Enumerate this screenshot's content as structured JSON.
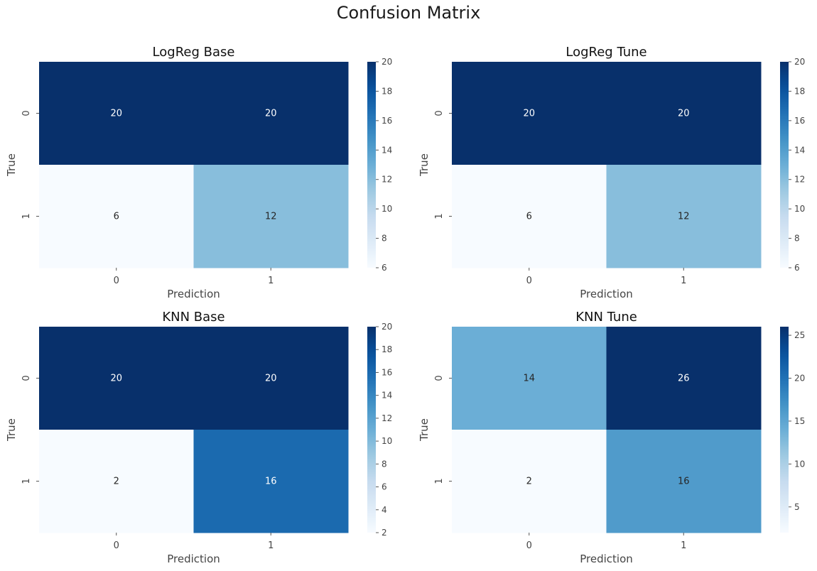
{
  "figure": {
    "title": "Confusion Matrix"
  },
  "colormap": {
    "name": "Blues",
    "low": "#f7fbff",
    "high": "#08306b"
  },
  "chart_data": [
    {
      "type": "heatmap",
      "title": "LogReg Base",
      "xlabel": "Prediction",
      "ylabel": "True",
      "x_categories": [
        "0",
        "1"
      ],
      "y_categories": [
        "0",
        "1"
      ],
      "values": [
        [
          20,
          20
        ],
        [
          6,
          12
        ]
      ],
      "colorbar": {
        "min": 6,
        "max": 20,
        "ticks": [
          6,
          8,
          10,
          12,
          14,
          16,
          18,
          20
        ]
      }
    },
    {
      "type": "heatmap",
      "title": "LogReg Tune",
      "xlabel": "Prediction",
      "ylabel": "True",
      "x_categories": [
        "0",
        "1"
      ],
      "y_categories": [
        "0",
        "1"
      ],
      "values": [
        [
          20,
          20
        ],
        [
          6,
          12
        ]
      ],
      "colorbar": {
        "min": 6,
        "max": 20,
        "ticks": [
          6,
          8,
          10,
          12,
          14,
          16,
          18,
          20
        ]
      }
    },
    {
      "type": "heatmap",
      "title": "KNN Base",
      "xlabel": "Prediction",
      "ylabel": "True",
      "x_categories": [
        "0",
        "1"
      ],
      "y_categories": [
        "0",
        "1"
      ],
      "values": [
        [
          20,
          20
        ],
        [
          2,
          16
        ]
      ],
      "colorbar": {
        "min": 2,
        "max": 20,
        "ticks": [
          2,
          4,
          6,
          8,
          10,
          12,
          14,
          16,
          18,
          20
        ]
      }
    },
    {
      "type": "heatmap",
      "title": "KNN Tune",
      "xlabel": "Prediction",
      "ylabel": "True",
      "x_categories": [
        "0",
        "1"
      ],
      "y_categories": [
        "0",
        "1"
      ],
      "values": [
        [
          14,
          26
        ],
        [
          2,
          16
        ]
      ],
      "colorbar": {
        "min": 2,
        "max": 26,
        "ticks": [
          5,
          10,
          15,
          20,
          25
        ]
      }
    }
  ]
}
